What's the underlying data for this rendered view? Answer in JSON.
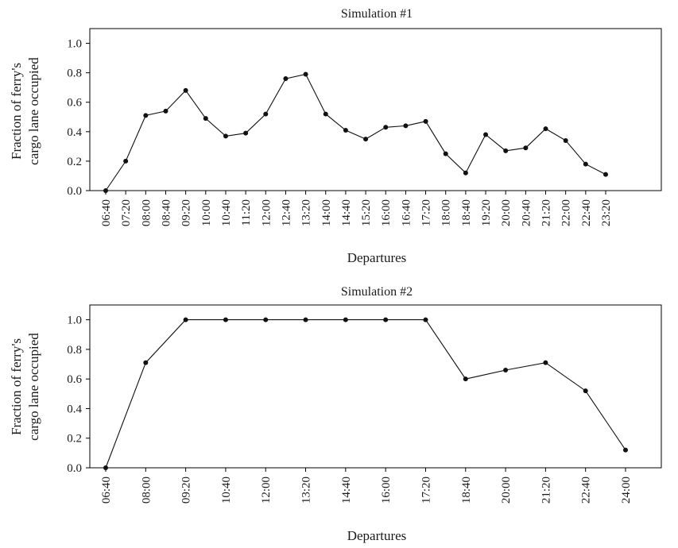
{
  "chart_data": [
    {
      "type": "line",
      "title": "Simulation #1",
      "xlabel": "Departures",
      "ylabel": [
        "Fraction of ferry's",
        "cargo lane occupied"
      ],
      "ylim": [
        0,
        1.1
      ],
      "yticks": [
        "0.0",
        "0.2",
        "0.4",
        "0.6",
        "0.8",
        "1.0"
      ],
      "grid": false,
      "categories": [
        "06:40",
        "07:20",
        "08:00",
        "08:40",
        "09:20",
        "10:00",
        "10:40",
        "11:20",
        "12:00",
        "12:40",
        "13:20",
        "14:00",
        "14:40",
        "15:20",
        "16:00",
        "16:40",
        "17:20",
        "18:00",
        "18:40",
        "19:20",
        "20:00",
        "20:40",
        "21:20",
        "22:00",
        "22:40",
        "23:20"
      ],
      "values": [
        0.0,
        0.2,
        0.51,
        0.54,
        0.68,
        0.49,
        0.37,
        0.39,
        0.52,
        0.76,
        0.79,
        0.52,
        0.41,
        0.35,
        0.43,
        0.44,
        0.47,
        0.25,
        0.12,
        0.38,
        0.27,
        0.29,
        0.42,
        0.34,
        0.18,
        0.11
      ]
    },
    {
      "type": "line",
      "title": "Simulation #2",
      "xlabel": "Departures",
      "ylabel": [
        "Fraction of ferry's",
        "cargo lane occupied"
      ],
      "ylim": [
        0,
        1.1
      ],
      "yticks": [
        "0.0",
        "0.2",
        "0.4",
        "0.6",
        "0.8",
        "1.0"
      ],
      "grid": false,
      "categories": [
        "06:40",
        "08:00",
        "09:20",
        "10:40",
        "12:00",
        "13:20",
        "14:40",
        "16:00",
        "17:20",
        "18:40",
        "20:00",
        "21:20",
        "22:40",
        "24:00"
      ],
      "values": [
        0.0,
        0.71,
        1.0,
        1.0,
        1.0,
        1.0,
        1.0,
        1.0,
        1.0,
        0.6,
        0.66,
        0.71,
        0.52,
        0.12
      ]
    }
  ]
}
